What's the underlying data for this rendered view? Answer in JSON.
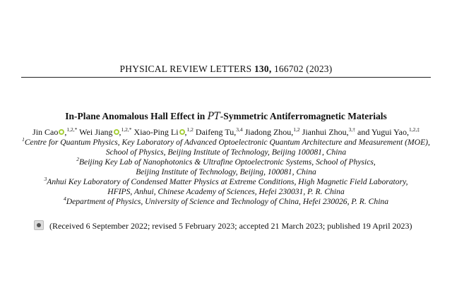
{
  "journal_header": {
    "name": "PHYSICAL REVIEW LETTERS",
    "volume": "130,",
    "article": "166702 (2023)"
  },
  "title": {
    "before": "In-Plane Anomalous Hall Effect in ",
    "symbol": "PT",
    "after": "-Symmetric Antiferromagnetic Materials"
  },
  "authors": [
    {
      "name": "Jin Cao",
      "orcid": true,
      "aff": "1,2,*"
    },
    {
      "name": "Wei Jiang",
      "orcid": true,
      "aff": "1,2,*"
    },
    {
      "name": "Xiao-Ping Li",
      "orcid": true,
      "aff": "1,2"
    },
    {
      "name": "Daifeng Tu",
      "orcid": false,
      "aff": "3,4"
    },
    {
      "name": "Jiadong Zhou",
      "orcid": false,
      "aff": "1,2"
    },
    {
      "name": "Jianhui Zhou",
      "orcid": false,
      "aff": "3,†"
    },
    {
      "name": "Yugui Yao",
      "orcid": false,
      "aff": "1,2,‡"
    }
  ],
  "author_conjunction": "and",
  "affiliations": [
    {
      "num": "1",
      "lines": [
        "Centre for Quantum Physics, Key Laboratory of Advanced Optoelectronic Quantum Architecture and Measurement (MOE),",
        "School of Physics, Beijing Institute of Technology, Beijing 100081, China"
      ]
    },
    {
      "num": "2",
      "lines": [
        "Beijing Key Lab of Nanophotonics & Ultrafine Optoelectronic Systems, School of Physics,",
        "Beijing Institute of Technology, Beijing, 100081, China"
      ]
    },
    {
      "num": "3",
      "lines": [
        "Anhui Key Laboratory of Condensed Matter Physics at Extreme Conditions, High Magnetic Field Laboratory,",
        "HFIPS, Anhui, Chinese Academy of Sciences, Hefei 230031, P. R. China"
      ]
    },
    {
      "num": "4",
      "lines": [
        "Department of Physics, University of Science and Technology of China, Hefei 230026, P. R. China"
      ]
    }
  ],
  "history": "(Received 6 September 2022; revised 5 February 2023; accepted 21 March 2023; published 19 April 2023)",
  "colors": {
    "orcid": "#a6ce39"
  },
  "icons": {
    "orcid": "orcid-icon",
    "crossmark": "check-for-updates-icon"
  }
}
